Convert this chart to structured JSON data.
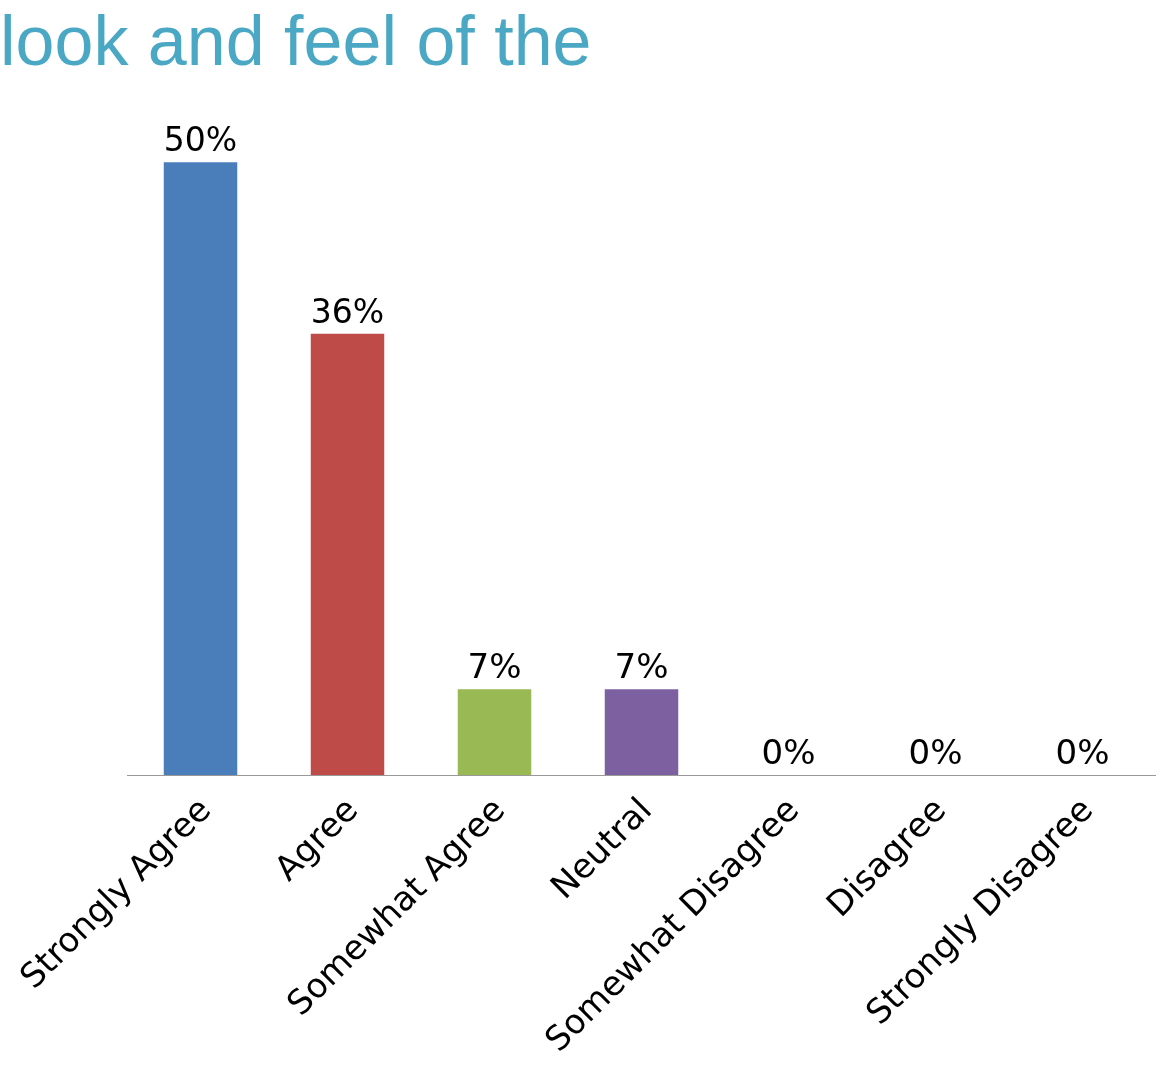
{
  "chart_data": {
    "type": "bar",
    "title": "look and feel of the",
    "categories": [
      "Strongly Agree",
      "Agree",
      "Somewhat Agree",
      "Neutral",
      "Somewhat Disagree",
      "Disagree",
      "Strongly Disagree"
    ],
    "values": [
      50,
      36,
      7,
      7,
      0,
      0,
      0
    ],
    "value_labels": [
      "50%",
      "36%",
      "7%",
      "7%",
      "0%",
      "0%",
      "0%"
    ],
    "colors": [
      "#4a7ebb",
      "#be4b48",
      "#98b954",
      "#7d60a0",
      "#46aac5",
      "#f79646",
      "#95b3d7"
    ],
    "legend": false,
    "grid": false
  }
}
